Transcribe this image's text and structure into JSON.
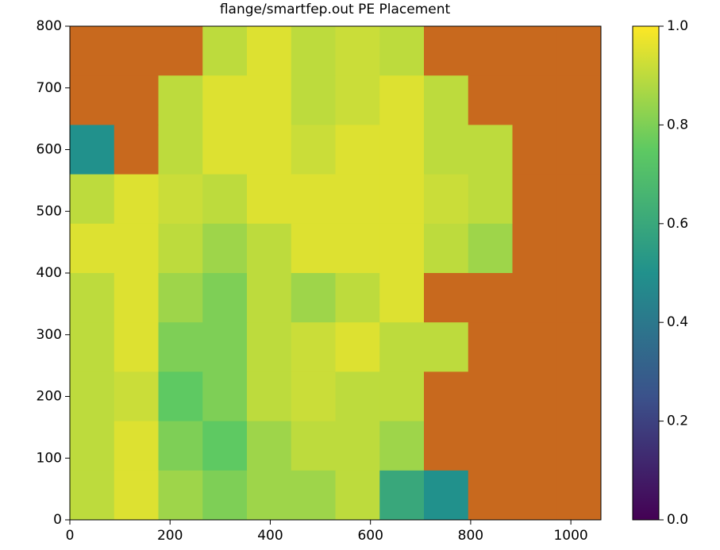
{
  "chart_data": {
    "type": "heatmap",
    "title": "flange/smartfep.out PE Placement",
    "colormap": "viridis",
    "masked_color": "#c8691e",
    "xlim": [
      0,
      1060
    ],
    "ylim": [
      0,
      800
    ],
    "xticks": [
      0,
      200,
      400,
      600,
      800,
      1000
    ],
    "yticks": [
      0,
      100,
      200,
      300,
      400,
      500,
      600,
      700,
      800
    ],
    "values": [
      [
        null,
        null,
        null,
        0.9,
        0.95,
        0.9,
        0.92,
        0.9,
        null,
        null,
        null,
        null
      ],
      [
        null,
        null,
        0.9,
        0.95,
        0.95,
        0.9,
        0.92,
        0.95,
        0.9,
        null,
        null,
        null
      ],
      [
        0.5,
        null,
        0.9,
        0.95,
        0.95,
        0.92,
        0.95,
        0.95,
        0.9,
        0.9,
        null,
        null
      ],
      [
        0.9,
        0.95,
        0.92,
        0.9,
        0.95,
        0.95,
        0.95,
        0.95,
        0.92,
        0.9,
        null,
        null
      ],
      [
        0.95,
        0.95,
        0.9,
        0.85,
        0.9,
        0.95,
        0.95,
        0.95,
        0.9,
        0.85,
        null,
        null
      ],
      [
        0.9,
        0.95,
        0.85,
        0.8,
        0.9,
        0.85,
        0.9,
        0.95,
        null,
        null,
        null,
        null
      ],
      [
        0.9,
        0.95,
        0.8,
        0.8,
        0.9,
        0.92,
        0.95,
        0.9,
        0.9,
        null,
        null,
        null
      ],
      [
        0.9,
        0.92,
        0.75,
        0.8,
        0.9,
        0.92,
        0.9,
        0.9,
        null,
        null,
        null,
        null
      ],
      [
        0.9,
        0.95,
        0.8,
        0.75,
        0.85,
        0.9,
        0.9,
        0.85,
        null,
        null,
        null,
        null
      ],
      [
        0.9,
        0.95,
        0.85,
        0.8,
        0.85,
        0.85,
        0.9,
        0.6,
        0.5,
        null,
        null,
        null
      ]
    ],
    "clim": [
      0,
      1
    ],
    "colorbar_ticks": [
      {
        "value": 0,
        "label": "0.0"
      },
      {
        "value": 0.2,
        "label": "0.2"
      },
      {
        "value": 0.4,
        "label": "0.4"
      },
      {
        "value": 0.6,
        "label": "0.6"
      },
      {
        "value": 0.8,
        "label": "0.8"
      },
      {
        "value": 1,
        "label": "1.0"
      }
    ]
  }
}
